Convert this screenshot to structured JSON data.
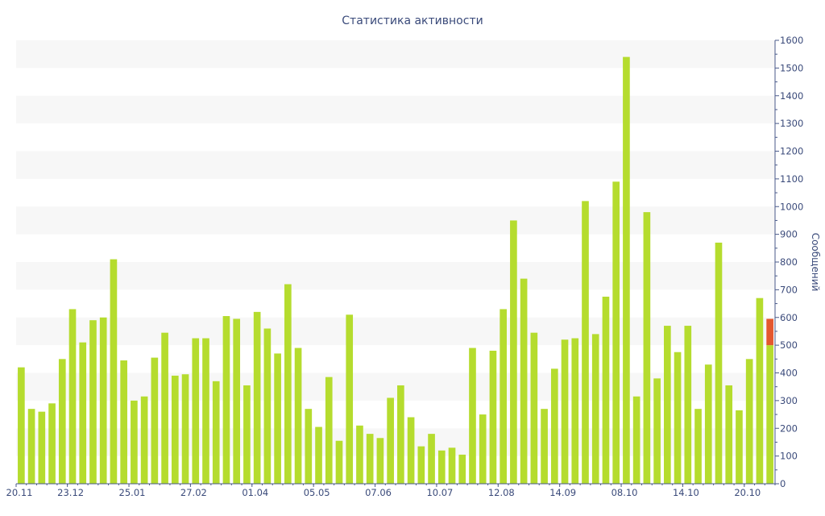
{
  "chart_data": {
    "type": "bar",
    "title": "Статистика активности",
    "ylabel": "Сообщений",
    "xlabel": "",
    "ylim": [
      0,
      1600
    ],
    "y_ticks": [
      0,
      100,
      200,
      300,
      400,
      500,
      600,
      700,
      800,
      900,
      1000,
      1100,
      1200,
      1300,
      1400,
      1500,
      1600
    ],
    "y_axis_side": "right",
    "grid": "alternating horizontal bands",
    "x_tick_labels": [
      {
        "index": 0,
        "label": "20.11"
      },
      {
        "index": 5,
        "label": "23.12"
      },
      {
        "index": 11,
        "label": "25.01"
      },
      {
        "index": 17,
        "label": "27.02"
      },
      {
        "index": 23,
        "label": "01.04"
      },
      {
        "index": 29,
        "label": "05.05"
      },
      {
        "index": 35,
        "label": "07.06"
      },
      {
        "index": 41,
        "label": "10.07"
      },
      {
        "index": 47,
        "label": "12.08"
      },
      {
        "index": 53,
        "label": "14.09"
      },
      {
        "index": 59,
        "label": "08.10"
      },
      {
        "index": 65,
        "label": "14.10"
      },
      {
        "index": 71,
        "label": "20.10"
      }
    ],
    "colors": {
      "bar": "#b5dc2e",
      "highlight": "#e4572e",
      "band": "#f7f7f7",
      "text": "#3a4a7a",
      "axis": "#4a5a8a"
    },
    "values": [
      420,
      270,
      260,
      290,
      450,
      630,
      510,
      590,
      600,
      810,
      445,
      300,
      315,
      455,
      545,
      390,
      395,
      525,
      525,
      370,
      605,
      595,
      355,
      620,
      560,
      470,
      720,
      490,
      270,
      205,
      385,
      155,
      610,
      210,
      180,
      165,
      310,
      355,
      240,
      135,
      180,
      120,
      130,
      105,
      490,
      250,
      480,
      630,
      950,
      740,
      545,
      270,
      415,
      520,
      525,
      1020,
      540,
      675,
      1090,
      1540,
      315,
      980,
      380,
      570,
      475,
      570,
      270,
      430,
      870,
      355,
      265,
      450,
      670,
      500
    ],
    "last_bar_extra": 95
  }
}
